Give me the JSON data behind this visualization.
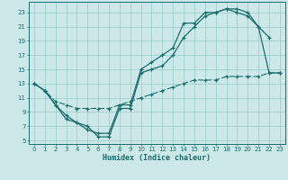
{
  "title": "",
  "xlabel": "Humidex (Indice chaleur)",
  "bg_color": "#cde8e8",
  "line_color": "#1a6e6e",
  "grid_color": "#9ecece",
  "xlim": [
    -0.5,
    23.5
  ],
  "ylim": [
    4.5,
    24.5
  ],
  "xticks": [
    0,
    1,
    2,
    3,
    4,
    5,
    6,
    7,
    8,
    9,
    10,
    11,
    12,
    13,
    14,
    15,
    16,
    17,
    18,
    19,
    20,
    21,
    22,
    23
  ],
  "yticks": [
    5,
    7,
    9,
    11,
    13,
    15,
    17,
    19,
    21,
    23
  ],
  "line1_x": [
    0,
    1,
    2,
    3,
    4,
    5,
    6,
    7,
    8,
    9,
    10,
    11,
    12,
    13,
    14,
    15,
    16,
    17,
    18,
    19,
    20,
    21,
    22
  ],
  "line1_y": [
    13,
    12,
    10,
    8.5,
    7.5,
    6.5,
    6,
    6,
    10,
    10,
    15,
    16,
    17,
    18,
    21.5,
    21.5,
    23,
    23,
    23.5,
    23.5,
    23,
    21,
    19.5
  ],
  "line2_x": [
    0,
    1,
    2,
    3,
    4,
    5,
    6,
    7,
    8,
    9,
    10,
    11,
    12,
    13,
    14,
    15,
    16,
    17,
    18,
    19,
    20,
    21,
    22,
    23
  ],
  "line2_y": [
    13,
    12,
    10,
    8,
    7.5,
    7,
    5.5,
    5.5,
    9.5,
    9.5,
    14.5,
    15,
    15.5,
    17,
    19.5,
    21,
    22.5,
    23,
    23.5,
    23,
    22.5,
    21,
    14.5,
    14.5
  ],
  "line3_x": [
    0,
    1,
    2,
    3,
    4,
    5,
    6,
    7,
    8,
    9,
    10,
    11,
    12,
    13,
    14,
    15,
    16,
    17,
    18,
    19,
    20,
    21,
    22,
    23
  ],
  "line3_y": [
    13,
    12,
    10.5,
    10,
    9.5,
    9.5,
    9.5,
    9.5,
    10,
    10.5,
    11,
    11.5,
    12,
    12.5,
    13,
    13.5,
    13.5,
    13.5,
    14,
    14,
    14,
    14,
    14.5,
    14.5
  ]
}
